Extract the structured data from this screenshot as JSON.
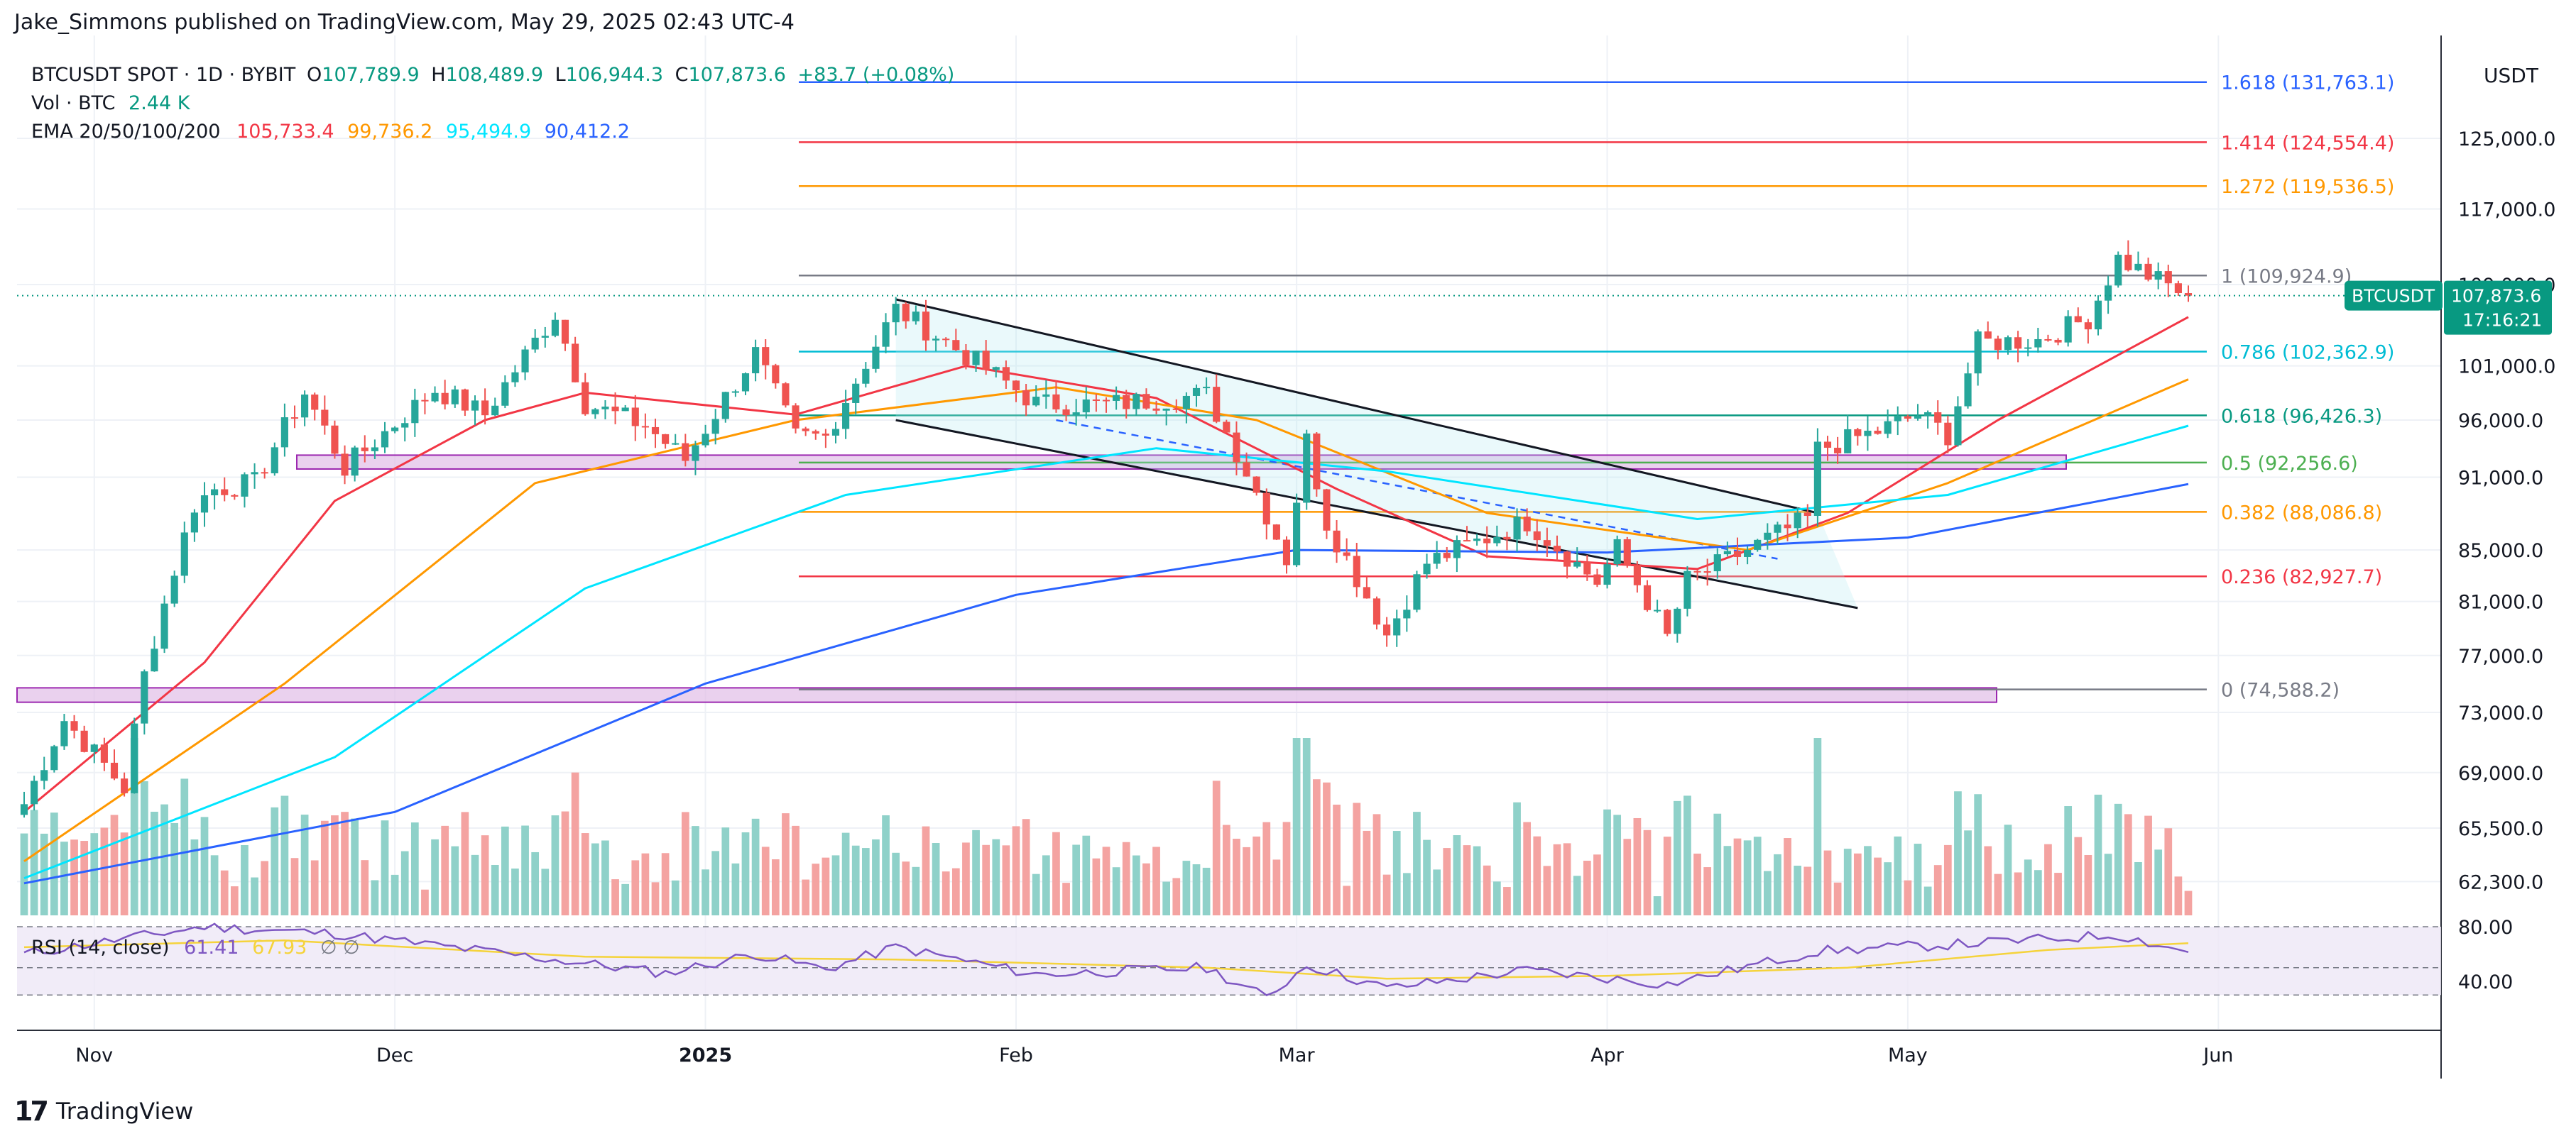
{
  "publisher_line": "Jake_Simmons published on TradingView.com, May 29, 2025 02:43 UTC-4",
  "footer_brand": "TradingView",
  "footer_brand_icon": "tradingview-logo-icon",
  "legend": {
    "symbol": "BTCUSDT SPOT · 1D · BYBIT",
    "open_label": "O",
    "open": "107,789.9",
    "high_label": "H",
    "high": "108,489.9",
    "low_label": "L",
    "low": "106,944.3",
    "close_label": "C",
    "close": "107,873.6",
    "change": "+83.7 (+0.08%)",
    "vol_label": "Vol · BTC",
    "vol_value": "2.44 K",
    "ema_label": "EMA 20/50/100/200",
    "ema_values": [
      "105,733.4",
      "99,736.2",
      "95,494.9",
      "90,412.2"
    ],
    "rsi_label": "RSI (14, close)",
    "rsi_value": "61.41",
    "rsi_ma_value": "67.93",
    "rsi_extra": "∅ ∅"
  },
  "colors": {
    "up": "#26a69a",
    "down": "#ef5350",
    "vol_up": "#8fd1c9",
    "vol_down": "#f4a3a1",
    "ema20": "#f23645",
    "ema50": "#ff9800",
    "ema100": "#00e5ff",
    "ema200": "#2962ff",
    "rsi": "#7e57c2",
    "rsi_ma": "#f5d33b",
    "price_tag": "#089981"
  },
  "axis": {
    "currency": "USDT",
    "current_price_label": "107,873.6",
    "countdown": "17:16:21",
    "symbol_tag": "BTCUSDT"
  },
  "chart_data": {
    "type": "candlestick",
    "title": "BTCUSDT SPOT · 1D · BYBIT",
    "x_axis_labels": [
      "Nov",
      "Dec",
      "2025",
      "Feb",
      "Mar",
      "Apr",
      "May",
      "Jun"
    ],
    "y_axis": {
      "scale": "log",
      "ticks": [
        125000,
        117000,
        109000,
        101000,
        96000,
        91000,
        85000,
        81000,
        77000,
        73000,
        69000,
        65500,
        62300
      ],
      "tick_labels": [
        "125,000.0",
        "117,000.0",
        "109,000.0",
        "101,000.0",
        "96,000.0",
        "91,000.0",
        "85,000.0",
        "81,000.0",
        "77,000.0",
        "73,000.0",
        "69,000.0",
        "65,500.0",
        "62,300.0"
      ]
    },
    "rsi_axis": {
      "ticks": [
        80,
        40
      ],
      "tick_labels": [
        "80.00",
        "40.00"
      ]
    },
    "fibonacci_levels": [
      {
        "ratio": "1.618",
        "price": "131,763.1",
        "color": "#2962ff"
      },
      {
        "ratio": "1.414",
        "price": "124,554.4",
        "color": "#f23645"
      },
      {
        "ratio": "1.272",
        "price": "119,536.5",
        "color": "#ff9800"
      },
      {
        "ratio": "1",
        "price": "109,924.9",
        "color": "#787b86"
      },
      {
        "ratio": "0.786",
        "price": "102,362.9",
        "color": "#00bcd4"
      },
      {
        "ratio": "0.618",
        "price": "96,426.3",
        "color": "#089981"
      },
      {
        "ratio": "0.5",
        "price": "92,256.6",
        "color": "#4caf50"
      },
      {
        "ratio": "0.382",
        "price": "88,086.8",
        "color": "#ff9800"
      },
      {
        "ratio": "0.236",
        "price": "82,927.7",
        "color": "#f23645"
      },
      {
        "ratio": "0",
        "price": "74,588.2",
        "color": "#787b86"
      }
    ],
    "support_zones": [
      {
        "low": 91700,
        "high": 92900
      },
      {
        "low": 73700,
        "high": 74700
      }
    ],
    "anchors": [
      {
        "date": "2024-10-25",
        "close": 67000
      },
      {
        "date": "2024-10-29",
        "close": 72500
      },
      {
        "date": "2024-11-04",
        "close": 68000
      },
      {
        "date": "2024-11-06",
        "close": 75600
      },
      {
        "date": "2024-11-11",
        "close": 88700
      },
      {
        "date": "2024-11-13",
        "close": 90000
      },
      {
        "date": "2024-11-17",
        "close": 90500
      },
      {
        "date": "2024-11-22",
        "close": 98500
      },
      {
        "date": "2024-11-26",
        "close": 91800
      },
      {
        "date": "2024-12-05",
        "close": 98800
      },
      {
        "date": "2024-12-10",
        "close": 96500
      },
      {
        "date": "2024-12-17",
        "close": 106100
      },
      {
        "date": "2024-12-20",
        "close": 97500
      },
      {
        "date": "2024-12-26",
        "close": 95500
      },
      {
        "date": "2024-12-30",
        "close": 92500
      },
      {
        "date": "2025-01-06",
        "close": 102200
      },
      {
        "date": "2025-01-10",
        "close": 94500
      },
      {
        "date": "2025-01-13",
        "close": 94500
      },
      {
        "date": "2025-01-20",
        "close": 106500
      },
      {
        "date": "2025-01-27",
        "close": 102000
      },
      {
        "date": "2025-02-03",
        "close": 97500
      },
      {
        "date": "2025-02-10",
        "close": 97400
      },
      {
        "date": "2025-02-20",
        "close": 98300
      },
      {
        "date": "2025-02-24",
        "close": 91500
      },
      {
        "date": "2025-02-28",
        "close": 84300
      },
      {
        "date": "2025-03-02",
        "close": 94200
      },
      {
        "date": "2025-03-04",
        "close": 87200
      },
      {
        "date": "2025-03-10",
        "close": 78500
      },
      {
        "date": "2025-03-14",
        "close": 84000
      },
      {
        "date": "2025-03-24",
        "close": 87300
      },
      {
        "date": "2025-03-31",
        "close": 82500
      },
      {
        "date": "2025-04-02",
        "close": 85100
      },
      {
        "date": "2025-04-07",
        "close": 78300
      },
      {
        "date": "2025-04-09",
        "close": 82600
      },
      {
        "date": "2025-04-14",
        "close": 84600
      },
      {
        "date": "2025-04-21",
        "close": 87500
      },
      {
        "date": "2025-04-22",
        "close": 93400
      },
      {
        "date": "2025-04-28",
        "close": 95000
      },
      {
        "date": "2025-05-02",
        "close": 96500
      },
      {
        "date": "2025-05-05",
        "close": 94700
      },
      {
        "date": "2025-05-08",
        "close": 103200
      },
      {
        "date": "2025-05-14",
        "close": 103500
      },
      {
        "date": "2025-05-19",
        "close": 105600
      },
      {
        "date": "2025-05-22",
        "close": 111700
      },
      {
        "date": "2025-05-26",
        "close": 109400
      },
      {
        "date": "2025-05-29",
        "close": 107873.6
      }
    ],
    "emas": [
      {
        "name": "EMA 20",
        "points": [
          [
            "2024-10-25",
            66500
          ],
          [
            "2024-11-12",
            76500
          ],
          [
            "2024-11-25",
            89000
          ],
          [
            "2024-12-10",
            96000
          ],
          [
            "2024-12-20",
            98500
          ],
          [
            "2025-01-10",
            96500
          ],
          [
            "2025-01-27",
            101000
          ],
          [
            "2025-02-15",
            98000
          ],
          [
            "2025-03-05",
            90000
          ],
          [
            "2025-03-20",
            84500
          ],
          [
            "2025-04-10",
            83500
          ],
          [
            "2025-04-25",
            88000
          ],
          [
            "2025-05-10",
            96000
          ],
          [
            "2025-05-29",
            105733.4
          ]
        ]
      },
      {
        "name": "EMA 50",
        "points": [
          [
            "2024-10-25",
            63500
          ],
          [
            "2024-11-20",
            75000
          ],
          [
            "2024-12-15",
            90500
          ],
          [
            "2025-01-10",
            96000
          ],
          [
            "2025-02-05",
            99000
          ],
          [
            "2025-02-25",
            96000
          ],
          [
            "2025-03-20",
            88000
          ],
          [
            "2025-04-15",
            85000
          ],
          [
            "2025-05-05",
            90500
          ],
          [
            "2025-05-29",
            99736.2
          ]
        ]
      },
      {
        "name": "EMA 100",
        "points": [
          [
            "2024-10-25",
            62500
          ],
          [
            "2024-11-25",
            70000
          ],
          [
            "2024-12-20",
            82000
          ],
          [
            "2025-01-15",
            89500
          ],
          [
            "2025-02-15",
            93500
          ],
          [
            "2025-03-10",
            91500
          ],
          [
            "2025-04-10",
            87500
          ],
          [
            "2025-05-05",
            89500
          ],
          [
            "2025-05-29",
            95494.9
          ]
        ]
      },
      {
        "name": "EMA 200",
        "points": [
          [
            "2024-10-25",
            62200
          ],
          [
            "2024-12-01",
            66500
          ],
          [
            "2025-01-01",
            75000
          ],
          [
            "2025-02-01",
            81500
          ],
          [
            "2025-03-01",
            85000
          ],
          [
            "2025-04-01",
            84800
          ],
          [
            "2025-05-01",
            86000
          ],
          [
            "2025-05-29",
            90412.2
          ]
        ]
      }
    ],
    "trend_channel": {
      "upper": [
        [
          "2025-01-20",
          107500
        ],
        [
          "2025-04-22",
          88000
        ]
      ],
      "lower": [
        [
          "2025-01-20",
          96000
        ],
        [
          "2025-04-26",
          80500
        ]
      ],
      "mid": [
        [
          "2025-02-05",
          96000
        ],
        [
          "2025-04-18",
          84300
        ]
      ]
    },
    "rsi": [
      [
        "2024-10-25",
        60
      ],
      [
        "2024-11-12",
        80
      ],
      [
        "2024-11-25",
        75
      ],
      [
        "2024-12-10",
        62
      ],
      [
        "2024-12-28",
        46
      ],
      [
        "2025-01-06",
        60
      ],
      [
        "2025-01-13",
        49
      ],
      [
        "2025-01-20",
        65
      ],
      [
        "2025-02-03",
        45
      ],
      [
        "2025-02-20",
        50
      ],
      [
        "2025-02-26",
        28
      ],
      [
        "2025-03-02",
        52
      ],
      [
        "2025-03-10",
        35
      ],
      [
        "2025-03-24",
        48
      ],
      [
        "2025-04-07",
        38
      ],
      [
        "2025-04-22",
        62
      ],
      [
        "2025-05-08",
        68
      ],
      [
        "2025-05-22",
        74
      ],
      [
        "2025-05-29",
        61.41
      ]
    ],
    "rsi_ma": [
      [
        "2024-10-25",
        65
      ],
      [
        "2024-11-20",
        70
      ],
      [
        "2024-12-20",
        58
      ],
      [
        "2025-01-20",
        56
      ],
      [
        "2025-02-20",
        50
      ],
      [
        "2025-03-10",
        42
      ],
      [
        "2025-04-01",
        44
      ],
      [
        "2025-04-25",
        50
      ],
      [
        "2025-05-15",
        63
      ],
      [
        "2025-05-29",
        67.93
      ]
    ]
  }
}
